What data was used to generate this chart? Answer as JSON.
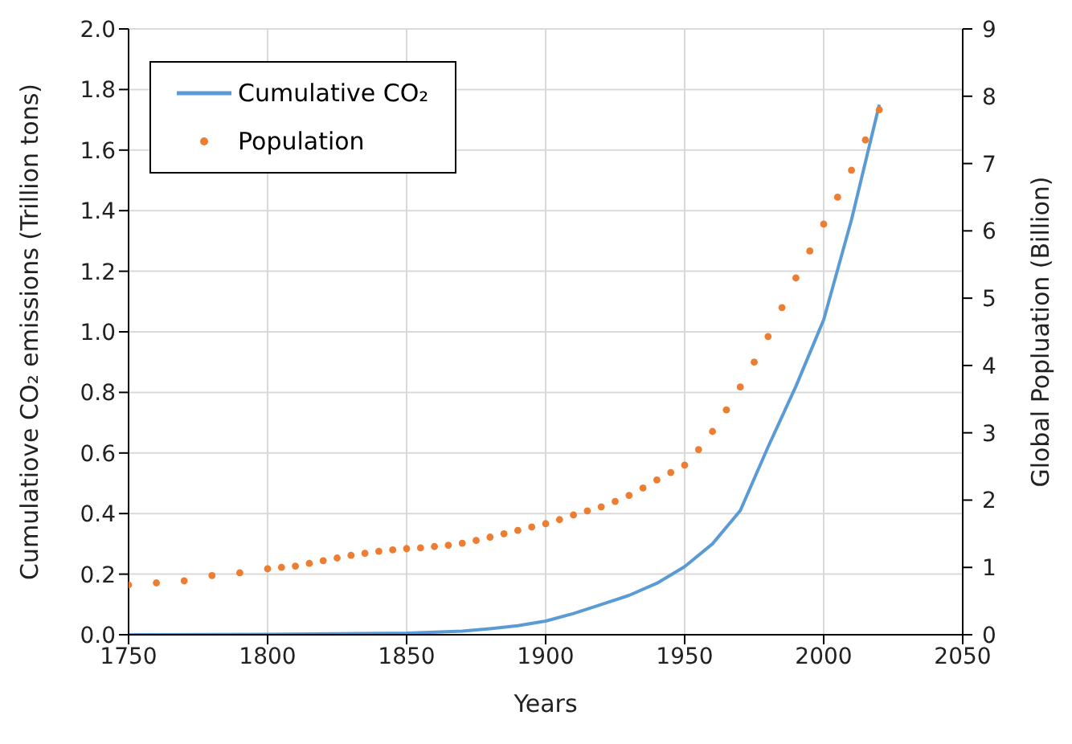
{
  "chart_data": {
    "type": "line",
    "xlabel": "Years",
    "ylabel": "Cumulatiove CO₂ emissions (Trillion tons)",
    "y2label": "Global Popluation (Billion)",
    "xlim": [
      1750,
      2050
    ],
    "xticks": [
      1750,
      1800,
      1850,
      1900,
      1950,
      2000,
      2050
    ],
    "ylim": [
      0,
      2
    ],
    "yticks": [
      {
        "value": 0,
        "label": "0.0"
      },
      {
        "value": 0.2,
        "label": "0.2"
      },
      {
        "value": 0.4,
        "label": "0.4"
      },
      {
        "value": 0.6,
        "label": "0.6"
      },
      {
        "value": 0.8,
        "label": "0.8"
      },
      {
        "value": 1,
        "label": "1.0"
      },
      {
        "value": 1.2,
        "label": "1.2"
      },
      {
        "value": 1.4,
        "label": "1.4"
      },
      {
        "value": 1.6,
        "label": "1.6"
      },
      {
        "value": 1.8,
        "label": "1.8"
      },
      {
        "value": 2,
        "label": "2.0"
      }
    ],
    "y2lim": [
      0,
      9
    ],
    "y2ticks": [
      0,
      1,
      2,
      3,
      4,
      5,
      6,
      7,
      8,
      9
    ],
    "grid": true,
    "legend": "top left",
    "series": [
      {
        "name": "Cumulative  CO₂",
        "color": "#5b9bd5",
        "marker": "none",
        "x": [
          1750,
          1800,
          1850,
          1870,
          1880,
          1890,
          1900,
          1910,
          1920,
          1930,
          1940,
          1950,
          1960,
          1970,
          1980,
          1990,
          2000,
          2010,
          2020
        ],
        "values": [
          0,
          0.001,
          0.005,
          0.012,
          0.02,
          0.03,
          0.045,
          0.07,
          0.1,
          0.13,
          0.17,
          0.225,
          0.3,
          0.41,
          0.62,
          0.82,
          1.04,
          1.37,
          1.75
        ]
      },
      {
        "name": "Population",
        "type": "scatter",
        "axis": "y2",
        "color": "#ed7d31",
        "marker": "circle",
        "x": [
          1750,
          1760,
          1770,
          1780,
          1790,
          1800,
          1805,
          1810,
          1815,
          1820,
          1825,
          1830,
          1835,
          1840,
          1845,
          1850,
          1855,
          1860,
          1865,
          1870,
          1875,
          1880,
          1885,
          1890,
          1895,
          1900,
          1905,
          1910,
          1915,
          1920,
          1925,
          1930,
          1935,
          1940,
          1945,
          1950,
          1955,
          1960,
          1965,
          1970,
          1975,
          1980,
          1985,
          1990,
          1995,
          2000,
          2005,
          2010,
          2015,
          2020
        ],
        "values": [
          0.74,
          0.77,
          0.8,
          0.88,
          0.92,
          0.98,
          1.0,
          1.02,
          1.06,
          1.1,
          1.14,
          1.18,
          1.21,
          1.24,
          1.26,
          1.28,
          1.29,
          1.31,
          1.33,
          1.36,
          1.4,
          1.45,
          1.5,
          1.55,
          1.6,
          1.65,
          1.71,
          1.78,
          1.84,
          1.9,
          1.98,
          2.07,
          2.18,
          2.3,
          2.41,
          2.52,
          2.75,
          3.02,
          3.34,
          3.68,
          4.05,
          4.43,
          4.86,
          5.3,
          5.7,
          6.1,
          6.5,
          6.9,
          7.35,
          7.8
        ]
      }
    ]
  }
}
